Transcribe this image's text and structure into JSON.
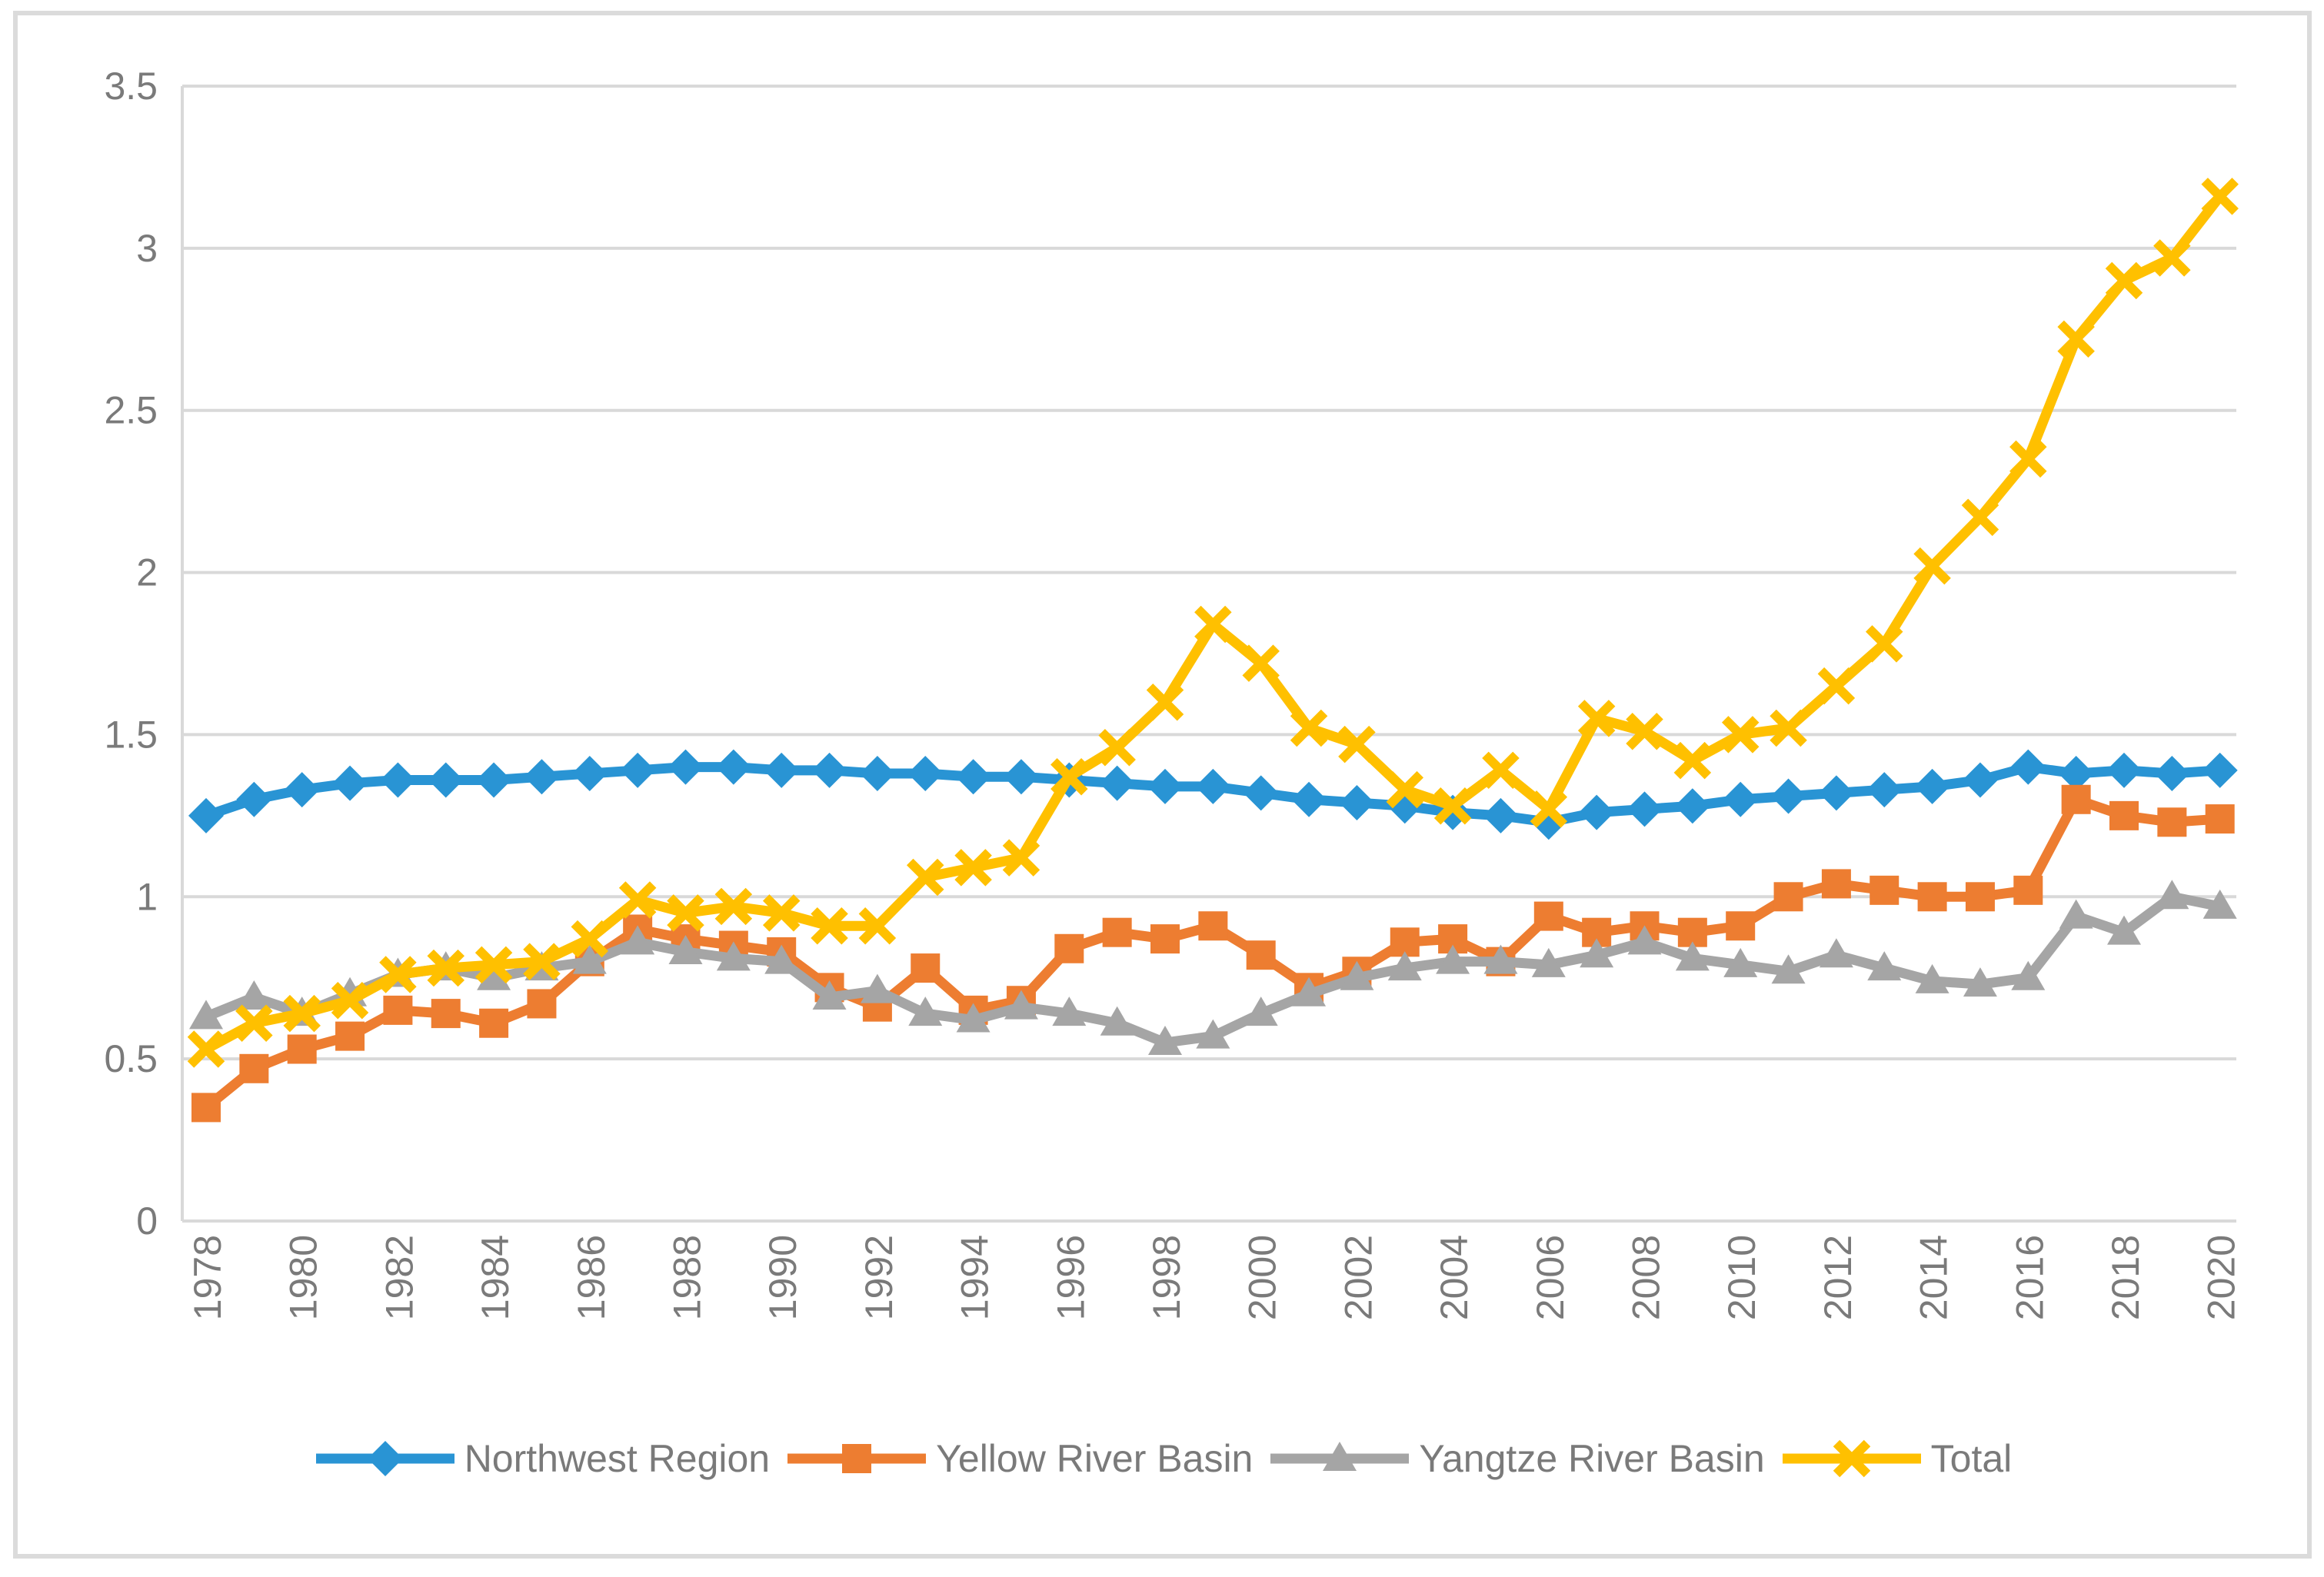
{
  "chart_data": {
    "type": "line",
    "title": "",
    "xlabel": "",
    "ylabel": "",
    "x": [
      1978,
      1979,
      1980,
      1981,
      1982,
      1983,
      1984,
      1985,
      1986,
      1987,
      1988,
      1989,
      1990,
      1991,
      1992,
      1993,
      1994,
      1995,
      1996,
      1997,
      1998,
      1999,
      2000,
      2001,
      2002,
      2003,
      2004,
      2005,
      2006,
      2007,
      2008,
      2009,
      2010,
      2011,
      2012,
      2013,
      2014,
      2015,
      2016,
      2017,
      2018,
      2019,
      2020
    ],
    "x_tick_labels": [
      "1978",
      "1980",
      "1982",
      "1984",
      "1986",
      "1988",
      "1990",
      "1992",
      "1994",
      "1996",
      "1998",
      "2000",
      "2002",
      "2004",
      "2006",
      "2008",
      "2010",
      "2012",
      "2014",
      "2016",
      "2018",
      "2020"
    ],
    "y_tick_labels": [
      "3.5",
      "3",
      "2.5",
      "2",
      "1.5",
      "1",
      "0.5",
      "0"
    ],
    "y_tick_values": [
      3.5,
      3,
      2.5,
      2,
      1.5,
      1,
      0.5,
      0
    ],
    "ylim": [
      0,
      3.5
    ],
    "grid": "horizontal",
    "legend_position": "bottom",
    "series": [
      {
        "name": "Northwest Region",
        "color": "#2994D4",
        "marker": "diamond",
        "values": [
          1.25,
          1.3,
          1.33,
          1.35,
          1.36,
          1.36,
          1.36,
          1.37,
          1.38,
          1.39,
          1.4,
          1.4,
          1.39,
          1.39,
          1.38,
          1.38,
          1.37,
          1.37,
          1.36,
          1.35,
          1.34,
          1.34,
          1.32,
          1.3,
          1.29,
          1.28,
          1.26,
          1.25,
          1.23,
          1.26,
          1.27,
          1.28,
          1.3,
          1.31,
          1.32,
          1.33,
          1.34,
          1.36,
          1.4,
          1.38,
          1.39,
          1.38,
          1.39
        ]
      },
      {
        "name": "Yellow River Basin",
        "color": "#ED7D31",
        "marker": "square",
        "values": [
          0.35,
          0.47,
          0.53,
          0.57,
          0.65,
          0.64,
          0.61,
          0.67,
          0.8,
          0.9,
          0.87,
          0.85,
          0.83,
          0.72,
          0.66,
          0.78,
          0.65,
          0.68,
          0.84,
          0.89,
          0.87,
          0.91,
          0.82,
          0.72,
          0.77,
          0.86,
          0.87,
          0.8,
          0.94,
          0.89,
          0.91,
          0.89,
          0.91,
          1.0,
          1.04,
          1.02,
          1.0,
          1.0,
          1.02,
          1.3,
          1.25,
          1.23,
          1.24
        ]
      },
      {
        "name": "Yangtze River Basin",
        "color": "#A5A5A5",
        "marker": "triangle",
        "values": [
          0.63,
          0.69,
          0.64,
          0.7,
          0.76,
          0.78,
          0.75,
          0.78,
          0.8,
          0.86,
          0.83,
          0.81,
          0.8,
          0.69,
          0.71,
          0.64,
          0.62,
          0.66,
          0.64,
          0.61,
          0.55,
          0.57,
          0.64,
          0.7,
          0.75,
          0.78,
          0.8,
          0.8,
          0.79,
          0.82,
          0.86,
          0.81,
          0.79,
          0.77,
          0.82,
          0.78,
          0.74,
          0.73,
          0.75,
          0.94,
          0.89,
          1.0,
          0.97
        ]
      },
      {
        "name": "Total",
        "color": "#FFC000",
        "marker": "x",
        "values": [
          0.53,
          0.61,
          0.64,
          0.68,
          0.76,
          0.78,
          0.79,
          0.8,
          0.87,
          0.99,
          0.95,
          0.97,
          0.95,
          0.91,
          0.91,
          1.06,
          1.09,
          1.12,
          1.37,
          1.46,
          1.6,
          1.84,
          1.72,
          1.52,
          1.47,
          1.33,
          1.28,
          1.39,
          1.27,
          1.55,
          1.51,
          1.42,
          1.5,
          1.52,
          1.65,
          1.78,
          2.02,
          2.17,
          2.35,
          2.72,
          2.9,
          2.97,
          3.16
        ]
      }
    ]
  },
  "colors": {
    "gridline": "#D9D9D9",
    "axis_text": "#7A7A7A",
    "frame_border": "#DBDBDB",
    "background": "#FFFFFF"
  }
}
